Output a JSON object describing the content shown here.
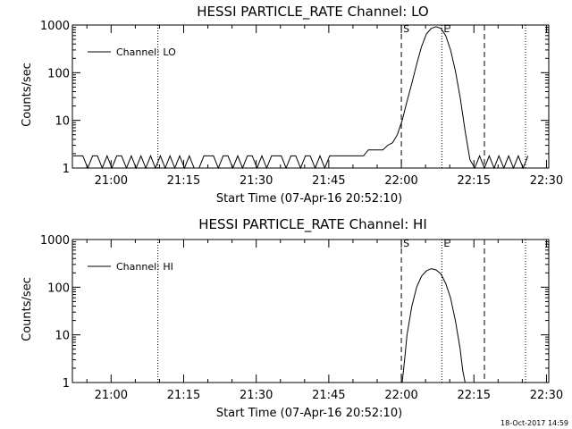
{
  "footer": {
    "timestamp": "18-Oct-2017 14:59"
  },
  "chart_data": [
    {
      "type": "line",
      "title": "HESSI PARTICLE_RATE Channel: LO",
      "xlabel": "Start Time (07-Apr-16 20:52:10)",
      "ylabel": "Counts/sec",
      "yscale": "log",
      "xlim_minutes": [
        -0.17,
        98.3
      ],
      "ylim": [
        1,
        1000
      ],
      "xtick_minutes": [
        7.83,
        22.83,
        37.83,
        52.83,
        67.83,
        82.83,
        97.83
      ],
      "xtick_labels": [
        "21:00",
        "21:15",
        "21:30",
        "21:45",
        "22:00",
        "22:15",
        "22:30"
      ],
      "ytick_values": [
        1,
        10,
        100,
        1000
      ],
      "ytick_labels": [
        "1",
        "10",
        "100",
        "1000"
      ],
      "legend": {
        "label": "Channel: LO",
        "placement": "top-left"
      },
      "markers": [
        {
          "x": 67.83,
          "style": "dashed",
          "label": "S"
        },
        {
          "x": 76.2,
          "style": "dotted",
          "label": "E"
        },
        {
          "x": 17.5,
          "style": "dotted",
          "label": ""
        },
        {
          "x": 85.0,
          "style": "dashed",
          "label": ""
        },
        {
          "x": 93.5,
          "style": "dotted",
          "label": ""
        }
      ],
      "series": [
        {
          "name": "Channel: LO",
          "x": [
            0,
            1,
            2,
            3,
            4,
            5,
            6,
            7,
            8,
            9,
            10,
            11,
            12,
            13,
            14,
            15,
            16,
            17,
            18,
            19,
            20,
            21,
            22,
            23,
            24,
            25,
            26,
            27,
            28,
            29,
            30,
            31,
            32,
            33,
            34,
            35,
            36,
            37,
            38,
            39,
            40,
            41,
            42,
            43,
            44,
            45,
            46,
            47,
            48,
            49,
            50,
            51,
            52,
            53,
            54,
            55,
            56,
            57,
            58,
            59,
            60,
            61,
            62,
            63,
            64,
            65,
            66,
            67,
            68,
            69,
            70,
            71,
            72,
            73,
            74,
            75,
            76,
            77,
            78,
            79,
            80,
            81,
            82,
            83,
            84,
            85,
            86,
            87,
            88,
            89,
            90,
            91,
            92,
            93,
            94
          ],
          "y": [
            1.8,
            1.8,
            1.8,
            1,
            1.8,
            1.8,
            1,
            1.8,
            1,
            1.8,
            1.8,
            1,
            1.8,
            1,
            1.8,
            1,
            1.8,
            1,
            1.8,
            1,
            1.8,
            1,
            1.8,
            1,
            1.8,
            1,
            1,
            1.8,
            1.8,
            1.8,
            1,
            1.8,
            1.8,
            1,
            1.8,
            1,
            1.8,
            1.8,
            1,
            1.8,
            1,
            1.8,
            1.8,
            1.8,
            1,
            1.8,
            1.8,
            1,
            1.8,
            1.8,
            1,
            1.8,
            1,
            1.8,
            1.8,
            1.8,
            1.8,
            1.8,
            1.8,
            1.8,
            1.8,
            2.4,
            2.4,
            2.4,
            2.4,
            3,
            3.4,
            5,
            10,
            25,
            60,
            150,
            350,
            650,
            850,
            920,
            850,
            600,
            300,
            110,
            30,
            6,
            1.5,
            1,
            1.8,
            1,
            1.8,
            1,
            1.8,
            1,
            1.8,
            1,
            1.8,
            1,
            1.8
          ]
        }
      ]
    },
    {
      "type": "line",
      "title": "HESSI PARTICLE_RATE Channel: HI",
      "xlabel": "Start Time (07-Apr-16 20:52:10)",
      "ylabel": "Counts/sec",
      "yscale": "log",
      "xlim_minutes": [
        -0.17,
        98.3
      ],
      "ylim": [
        1,
        1000
      ],
      "xtick_minutes": [
        7.83,
        22.83,
        37.83,
        52.83,
        67.83,
        82.83,
        97.83
      ],
      "xtick_labels": [
        "21:00",
        "21:15",
        "21:30",
        "21:45",
        "22:00",
        "22:15",
        "22:30"
      ],
      "ytick_values": [
        1,
        10,
        100,
        1000
      ],
      "ytick_labels": [
        "1",
        "10",
        "100",
        "1000"
      ],
      "legend": {
        "label": "Channel: HI",
        "placement": "top-left"
      },
      "markers": [
        {
          "x": 67.83,
          "style": "dashed",
          "label": "S"
        },
        {
          "x": 76.2,
          "style": "dotted",
          "label": "E"
        },
        {
          "x": 17.5,
          "style": "dotted",
          "label": ""
        },
        {
          "x": 85.0,
          "style": "dashed",
          "label": ""
        },
        {
          "x": 93.5,
          "style": "dotted",
          "label": ""
        }
      ],
      "series": [
        {
          "name": "Channel: HI",
          "x": [
            68,
            68.5,
            69,
            70,
            71,
            72,
            73,
            74,
            75,
            76,
            77,
            78,
            79,
            80,
            80.5,
            81
          ],
          "y": [
            1,
            3,
            10,
            40,
            100,
            170,
            220,
            245,
            230,
            190,
            120,
            60,
            20,
            5,
            1.8,
            1
          ]
        }
      ]
    }
  ]
}
